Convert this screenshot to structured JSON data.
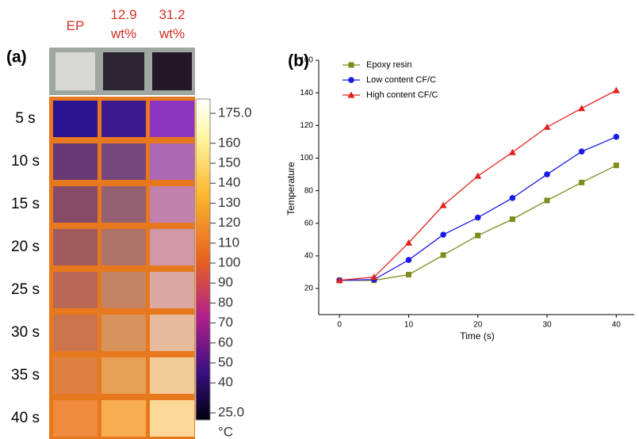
{
  "thermal_panel": {
    "label": "(a)",
    "columns": [
      "EP",
      "12.9 wt%",
      "31.2 wt%"
    ],
    "rows": [
      "5 s",
      "10 s",
      "15 s",
      "20 s",
      "25 s",
      "30 s",
      "35 s",
      "40 s"
    ],
    "colorbar_ticks": [
      {
        "value": 175,
        "label": "175.0"
      },
      160,
      150,
      140,
      130,
      120,
      110,
      100,
      90,
      80,
      70,
      60,
      50,
      40,
      {
        "value": 25,
        "label": "25.0"
      }
    ],
    "colorbar_unit": "°C"
  },
  "chart_data": {
    "type": "line",
    "panel_label": "(b)",
    "x_label": "Time (s)",
    "y_label": "Temperature",
    "x": [
      0,
      5,
      10,
      15,
      20,
      25,
      30,
      35,
      40
    ],
    "series": [
      {
        "name": "Epoxy resin",
        "color": "#7f8a1c",
        "marker": "square",
        "values": [
          25,
          25,
          28.5,
          40.5,
          52.5,
          62.5,
          74,
          85,
          95.5
        ]
      },
      {
        "name": "Low content CF/C",
        "color": "#1a1ae6",
        "marker": "circle",
        "values": [
          25,
          25.5,
          37.5,
          53,
          63.5,
          75.5,
          90,
          104,
          113
        ]
      },
      {
        "name": "High content CF/C",
        "color": "#e0201c",
        "marker": "triangle",
        "values": [
          25,
          27,
          48,
          71,
          89,
          103.5,
          119,
          130.5,
          141.5
        ]
      }
    ],
    "xlim": [
      -3,
      42.6
    ],
    "ylim": [
      4,
      160
    ],
    "xticks": [
      0,
      10,
      20,
      30,
      40
    ],
    "yticks": [
      20,
      40,
      60,
      80,
      100,
      120,
      140,
      160
    ],
    "legend": "upper left"
  }
}
